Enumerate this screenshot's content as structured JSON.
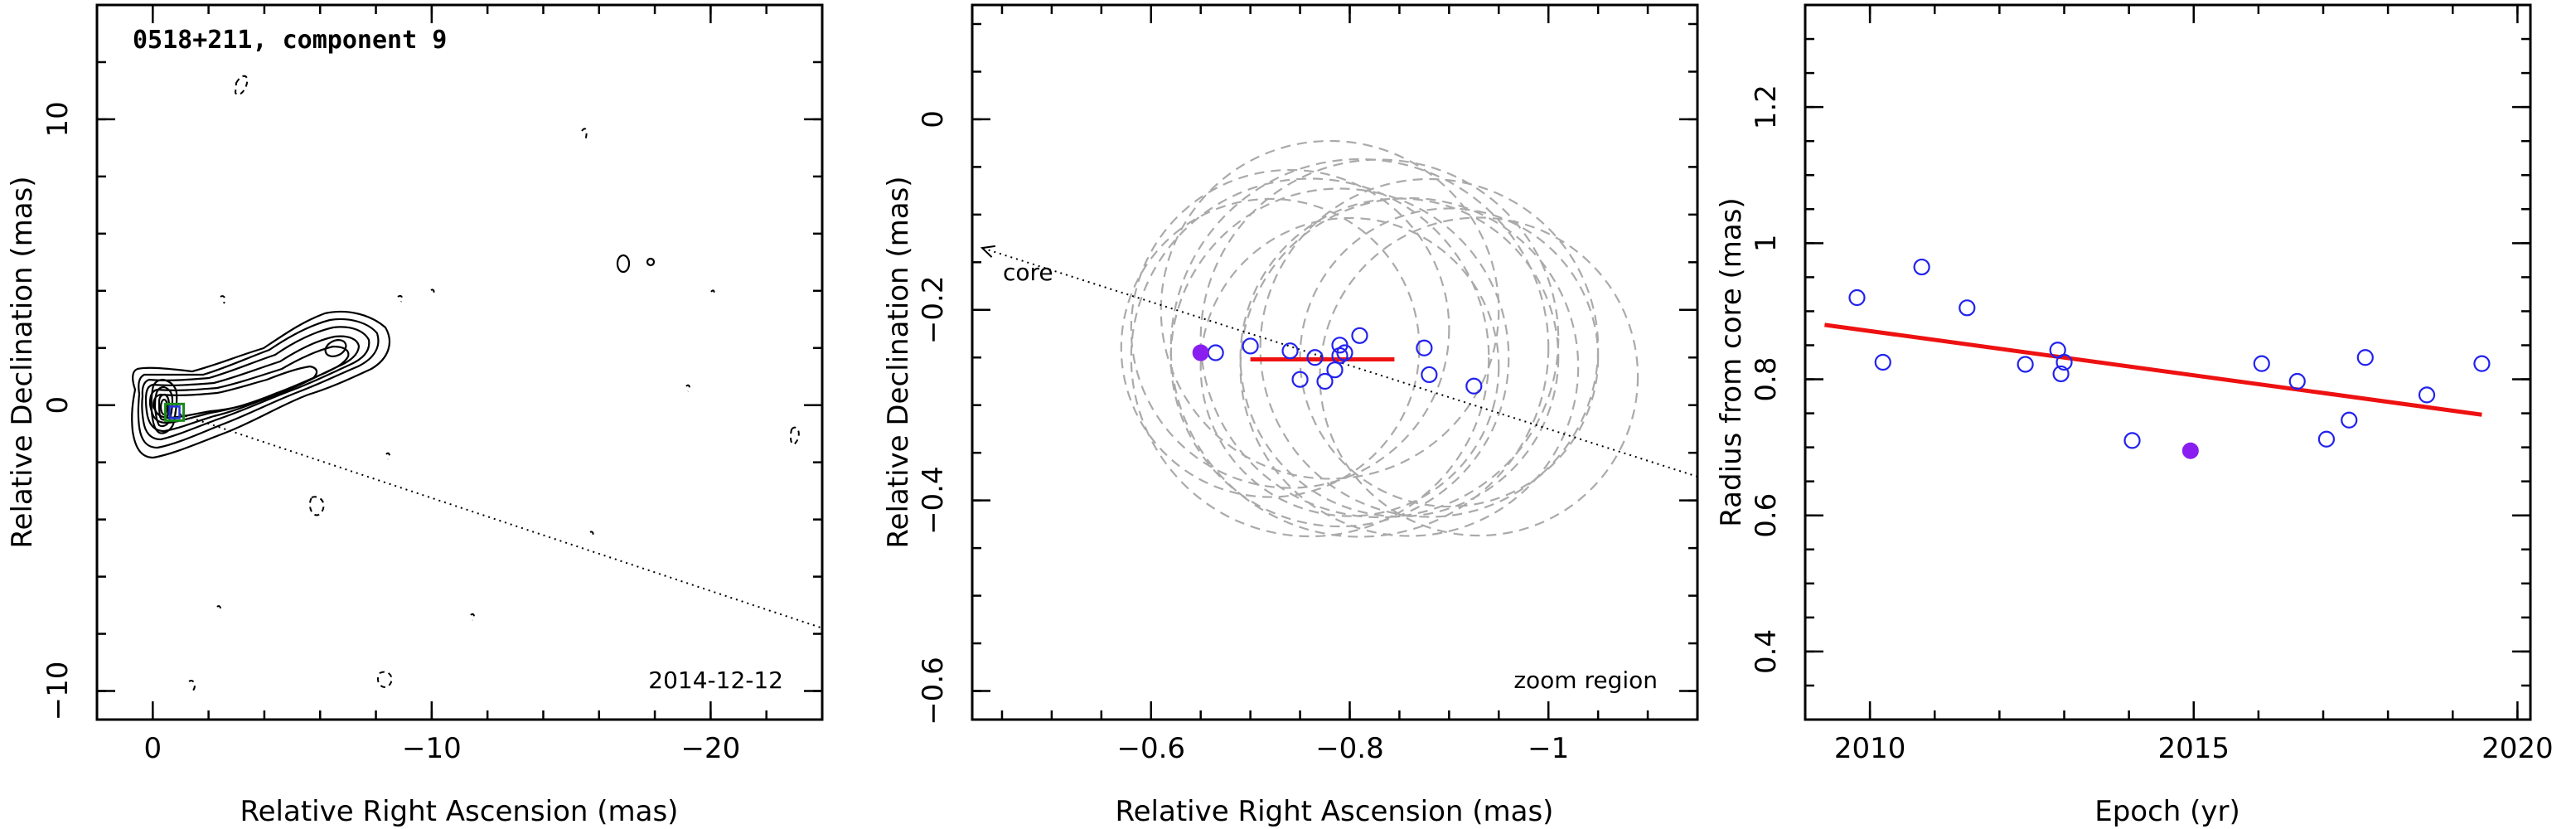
{
  "chart_data": [
    {
      "type": "contour-map",
      "title": "0518+211, component 9",
      "annotation": "2014-12-12",
      "xlabel": "Relative Right Ascension (mas)",
      "ylabel": "Relative Declination (mas)",
      "xlim": [
        2,
        -24
      ],
      "ylim": [
        -11,
        14
      ],
      "xticks": [
        0,
        -10,
        -20
      ],
      "yticks": [
        -10,
        0,
        10
      ],
      "component_position": [
        -0.78,
        -0.25
      ],
      "jet_direction_line": [
        [
          -0.78,
          -0.25
        ],
        [
          -24,
          -7.8
        ]
      ]
    },
    {
      "type": "scatter",
      "annotation": "zoom region",
      "core_label": "core",
      "xlabel": "Relative Right Ascension (mas)",
      "ylabel": "Relative Declination (mas)",
      "xlim": [
        -0.42,
        -1.15
      ],
      "ylim": [
        -0.63,
        0.12
      ],
      "xticks": [
        -0.6,
        -0.8,
        -1
      ],
      "yticks": [
        -0.6,
        -0.4,
        -0.2,
        0
      ],
      "color_points": "#2222ee",
      "color_highlight": "#8a1ef0",
      "color_fit": "#ee1111",
      "color_ellipses": "#aaaaaa",
      "x": [
        -0.665,
        -0.7,
        -0.74,
        -0.75,
        -0.765,
        -0.775,
        -0.785,
        -0.79,
        -0.79,
        -0.795,
        -0.81,
        -0.875,
        -0.88,
        -0.925
      ],
      "y": [
        -0.245,
        -0.238,
        -0.243,
        -0.273,
        -0.25,
        -0.275,
        -0.263,
        -0.237,
        -0.248,
        -0.245,
        -0.227,
        -0.24,
        -0.268,
        -0.28
      ],
      "highlight_point": [
        -0.65,
        -0.245
      ],
      "mean_segment": [
        [
          -0.7,
          -0.252
        ],
        [
          -0.845,
          -0.252
        ]
      ],
      "core_arrow": [
        [
          -1.15,
          -0.375
        ],
        [
          -0.43,
          -0.135
        ]
      ],
      "error_ellipses": [
        {
          "cx": -0.72,
          "cy": -0.24,
          "r": 0.15
        },
        {
          "cx": -0.74,
          "cy": -0.22,
          "r": 0.16
        },
        {
          "cx": -0.76,
          "cy": -0.25,
          "r": 0.18
        },
        {
          "cx": -0.78,
          "cy": -0.2,
          "r": 0.17
        },
        {
          "cx": -0.79,
          "cy": -0.25,
          "r": 0.17
        },
        {
          "cx": -0.8,
          "cy": -0.26,
          "r": 0.15
        },
        {
          "cx": -0.81,
          "cy": -0.24,
          "r": 0.19
        },
        {
          "cx": -0.83,
          "cy": -0.23,
          "r": 0.18
        },
        {
          "cx": -0.85,
          "cy": -0.25,
          "r": 0.16
        },
        {
          "cx": -0.86,
          "cy": -0.26,
          "r": 0.17
        },
        {
          "cx": -0.88,
          "cy": -0.24,
          "r": 0.17
        },
        {
          "cx": -0.9,
          "cy": -0.25,
          "r": 0.15
        },
        {
          "cx": -0.93,
          "cy": -0.27,
          "r": 0.16
        }
      ]
    },
    {
      "type": "scatter",
      "xlabel": "Epoch (yr)",
      "ylabel": "Radius from core (mas)",
      "xlim": [
        2009,
        2020.2
      ],
      "ylim": [
        0.3,
        1.35
      ],
      "xticks": [
        2010,
        2015,
        2020
      ],
      "yticks": [
        0.4,
        0.6,
        0.8,
        1,
        1.2
      ],
      "x": [
        2009.8,
        2010.2,
        2010.8,
        2011.5,
        2012.4,
        2012.9,
        2012.95,
        2013.0,
        2014.05,
        2016.05,
        2016.6,
        2017.05,
        2017.4,
        2017.65,
        2018.6,
        2019.45
      ],
      "y": [
        0.92,
        0.825,
        0.965,
        0.905,
        0.822,
        0.843,
        0.808,
        0.825,
        0.71,
        0.823,
        0.797,
        0.712,
        0.74,
        0.832,
        0.777,
        0.823
      ],
      "highlight_point": [
        2014.95,
        0.695
      ],
      "fit_line": [
        [
          2009.3,
          0.88
        ],
        [
          2019.45,
          0.748
        ]
      ]
    }
  ]
}
